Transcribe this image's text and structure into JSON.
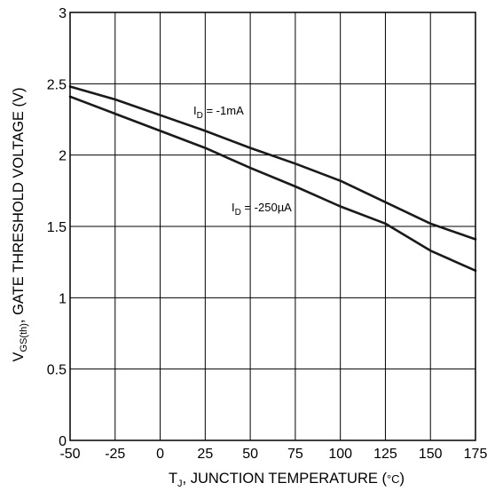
{
  "chart_data": {
    "type": "line",
    "title": "",
    "xlabel": {
      "prefix": "T",
      "sub": "J",
      "rest": ", JUNCTION TEMPERATURE (",
      "unit": "°C",
      "end": ")"
    },
    "ylabel": {
      "prefix": "V",
      "sub": "GS(th)",
      "rest": ", GATE THRESHOLD VOLTAGE (V)"
    },
    "xlim": [
      -50,
      175
    ],
    "ylim": [
      0,
      3
    ],
    "xticks": [
      "-50",
      "-25",
      "0",
      "25",
      "50",
      "75",
      "100",
      "125",
      "150",
      "175"
    ],
    "yticks": [
      "0",
      "0.5",
      "1",
      "1.5",
      "2",
      "2.5",
      "3"
    ],
    "grid": true,
    "series": [
      {
        "name": "-1mA",
        "label_prefix": "I",
        "label_sub": "D",
        "label_rest": " = -1mA",
        "color": "#1a1a1a",
        "x": [
          -50,
          -25,
          0,
          25,
          50,
          75,
          100,
          125,
          150,
          175
        ],
        "y": [
          2.48,
          2.39,
          2.28,
          2.17,
          2.05,
          1.94,
          1.82,
          1.67,
          1.52,
          1.41
        ]
      },
      {
        "name": "-250µA",
        "label_prefix": "I",
        "label_sub": "D",
        "label_rest": " = -250µA",
        "color": "#1a1a1a",
        "x": [
          -50,
          -25,
          0,
          25,
          50,
          75,
          100,
          125,
          150,
          175
        ],
        "y": [
          2.41,
          2.29,
          2.17,
          2.05,
          1.91,
          1.78,
          1.64,
          1.52,
          1.33,
          1.19
        ]
      }
    ]
  }
}
